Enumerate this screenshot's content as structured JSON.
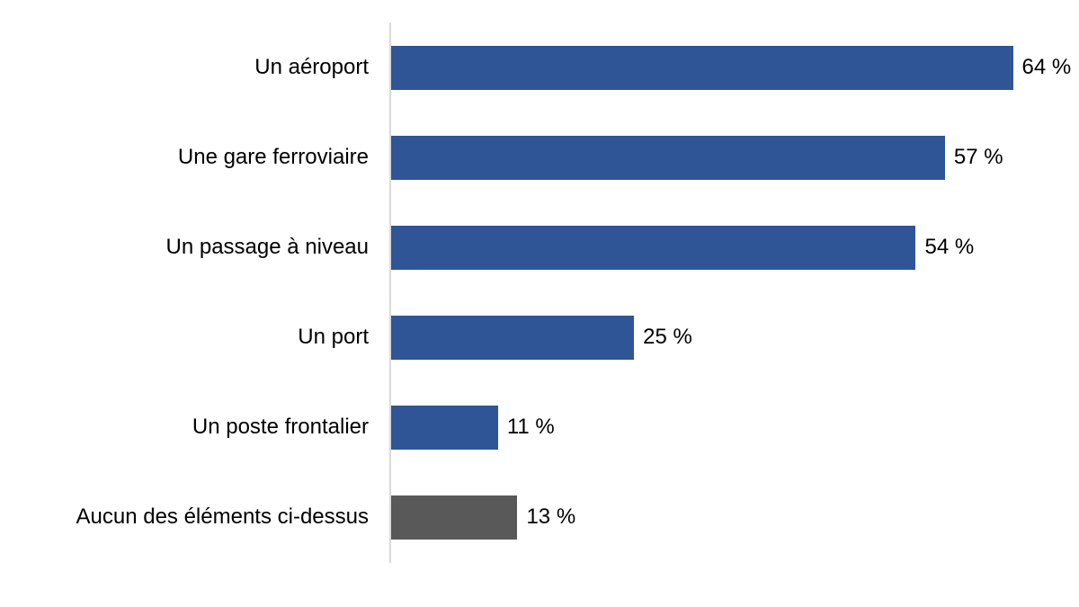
{
  "chart_data": {
    "type": "bar",
    "orientation": "horizontal",
    "title": "",
    "xlabel": "",
    "ylabel": "",
    "categories": [
      "Un aéroport",
      "Une gare ferroviaire",
      "Un passage à niveau",
      "Un port",
      "Un poste frontalier",
      "Aucun des éléments ci-dessus"
    ],
    "values": [
      64,
      57,
      54,
      25,
      11,
      13
    ],
    "value_labels": [
      "64 %",
      "57 %",
      "54 %",
      "25 %",
      "11 %",
      "13 %"
    ],
    "bar_colors": [
      "#2F5597",
      "#2F5597",
      "#2F5597",
      "#2F5597",
      "#2F5597",
      "#595959"
    ],
    "xlim": [
      0,
      70.8
    ],
    "grid": false,
    "legend": false,
    "axis_line_color": "#D9D9D9",
    "text_color": "#000000",
    "background_color": "#FFFFFF"
  }
}
